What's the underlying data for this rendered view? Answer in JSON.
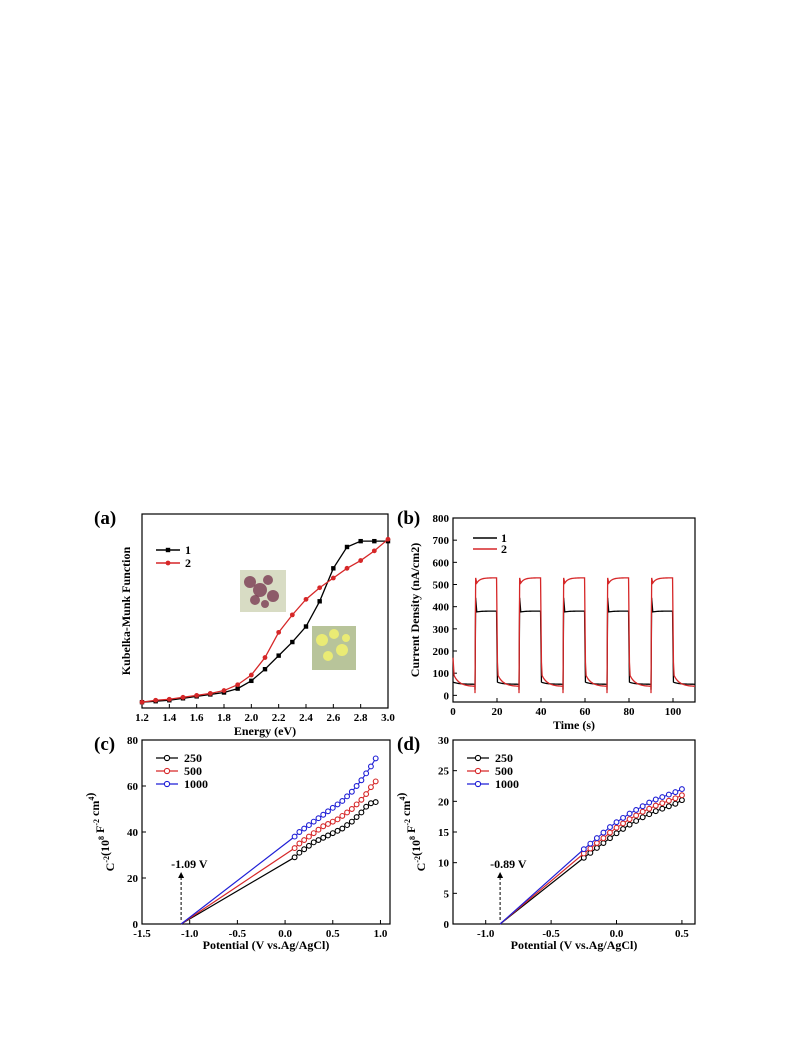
{
  "figure": {
    "panel_labels": [
      "(a)",
      "(b)",
      "(c)",
      "(d)"
    ]
  },
  "chart_data": [
    {
      "type": "line",
      "panel": "(a)",
      "xlabel": "Energy (eV)",
      "ylabel": "Kubelka-Munk Function",
      "xlim": [
        1.2,
        3.0
      ],
      "ylim": [
        0,
        1.0
      ],
      "xticks": [
        "1.2",
        "1.4",
        "1.6",
        "1.8",
        "2.0",
        "2.2",
        "2.4",
        "2.6",
        "2.8",
        "3.0"
      ],
      "yticks_visible": false,
      "legend": {
        "placement": "top-left",
        "entries": [
          "1",
          "2"
        ]
      },
      "colors": {
        "1": "#000000",
        "2": "#d62728"
      },
      "insets": [
        "purple crystal photo",
        "yellow crystal photo"
      ],
      "series": [
        {
          "name": "1",
          "marker": "square",
          "x": [
            1.2,
            1.3,
            1.4,
            1.5,
            1.6,
            1.7,
            1.8,
            1.9,
            2.0,
            2.1,
            2.2,
            2.3,
            2.4,
            2.5,
            2.6,
            2.7,
            2.8,
            2.9,
            3.0
          ],
          "y": [
            0.03,
            0.035,
            0.04,
            0.05,
            0.06,
            0.07,
            0.08,
            0.1,
            0.14,
            0.2,
            0.27,
            0.34,
            0.42,
            0.55,
            0.72,
            0.83,
            0.86,
            0.86,
            0.86
          ]
        },
        {
          "name": "2",
          "marker": "circle",
          "x": [
            1.2,
            1.3,
            1.4,
            1.5,
            1.6,
            1.7,
            1.8,
            1.9,
            2.0,
            2.1,
            2.2,
            2.3,
            2.4,
            2.5,
            2.6,
            2.7,
            2.8,
            2.9,
            3.0
          ],
          "y": [
            0.03,
            0.04,
            0.045,
            0.055,
            0.065,
            0.075,
            0.09,
            0.12,
            0.17,
            0.26,
            0.39,
            0.48,
            0.56,
            0.62,
            0.67,
            0.72,
            0.76,
            0.81,
            0.87
          ]
        }
      ]
    },
    {
      "type": "line",
      "panel": "(b)",
      "xlabel": "Time (s)",
      "ylabel": "Current Density  (nA/cm2)",
      "xlim": [
        0,
        110
      ],
      "ylim": [
        -30,
        800
      ],
      "xticks": [
        "0",
        "20",
        "40",
        "60",
        "80",
        "100"
      ],
      "yticks": [
        "0",
        "100",
        "200",
        "300",
        "400",
        "500",
        "600",
        "700",
        "800"
      ],
      "legend": {
        "placement": "top-left",
        "entries": [
          "1",
          "2"
        ]
      },
      "colors": {
        "1": "#000000",
        "2": "#d62728"
      },
      "cycles_on_off": [
        [
          10,
          20
        ],
        [
          30,
          40
        ],
        [
          50,
          60
        ],
        [
          70,
          80
        ],
        [
          90,
          100
        ]
      ],
      "series": [
        {
          "name": "1",
          "baseline": 50,
          "plateau": 380
        },
        {
          "name": "2",
          "baseline": 40,
          "plateau": 530
        }
      ]
    },
    {
      "type": "scatter",
      "panel": "(c)",
      "xlabel": "Potential (V vs.Ag/AgCl)",
      "ylabel": "C-2(108 F-2 cm4)",
      "xlim": [
        -1.5,
        1.1
      ],
      "ylim": [
        0,
        80
      ],
      "xticks": [
        "-1.5",
        "-1.0",
        "-0.5",
        "0.0",
        "0.5",
        "1.0"
      ],
      "yticks": [
        "0",
        "20",
        "40",
        "60",
        "80"
      ],
      "legend": {
        "placement": "top-left",
        "entries": [
          "250",
          "500",
          "1000"
        ]
      },
      "colors": {
        "250": "#000000",
        "500": "#d62728",
        "1000": "#1f1fd6"
      },
      "intercept_label": "-1.09 V",
      "intercept_x": -1.09,
      "series": [
        {
          "name": "250",
          "x": [
            0.1,
            0.15,
            0.2,
            0.25,
            0.3,
            0.35,
            0.4,
            0.45,
            0.5,
            0.55,
            0.6,
            0.65,
            0.7,
            0.75,
            0.8,
            0.85,
            0.9,
            0.95
          ],
          "y": [
            29,
            31,
            32.5,
            34,
            35.5,
            36.5,
            37.5,
            38.5,
            39.5,
            40.5,
            41.5,
            43,
            44.5,
            46.5,
            48.5,
            51,
            52.5,
            53
          ]
        },
        {
          "name": "500",
          "x": [
            0.1,
            0.15,
            0.2,
            0.25,
            0.3,
            0.35,
            0.4,
            0.45,
            0.5,
            0.55,
            0.6,
            0.65,
            0.7,
            0.75,
            0.8,
            0.85,
            0.9,
            0.95
          ],
          "y": [
            33,
            35,
            36.5,
            38,
            39.5,
            41,
            42.5,
            43.5,
            44.5,
            45.5,
            47,
            48.5,
            50,
            52,
            54,
            56.5,
            59.5,
            62
          ]
        },
        {
          "name": "1000",
          "x": [
            0.1,
            0.15,
            0.2,
            0.25,
            0.3,
            0.35,
            0.4,
            0.45,
            0.5,
            0.55,
            0.6,
            0.65,
            0.7,
            0.75,
            0.8,
            0.85,
            0.9,
            0.95
          ],
          "y": [
            38,
            40,
            41.5,
            43,
            44.5,
            46,
            47.5,
            49,
            50.5,
            52,
            53.5,
            55.5,
            57.5,
            60,
            62.5,
            65.5,
            68.5,
            72
          ]
        }
      ]
    },
    {
      "type": "scatter",
      "panel": "(d)",
      "xlabel": "Potential (V vs.Ag/AgCl)",
      "ylabel": "C-2(108 F-2 cm4)",
      "xlim": [
        -1.25,
        0.6
      ],
      "ylim": [
        0,
        30
      ],
      "xticks": [
        "-1.0",
        "-0.5",
        "0.0",
        "0.5"
      ],
      "yticks": [
        "0",
        "5",
        "10",
        "15",
        "20",
        "25",
        "30"
      ],
      "legend": {
        "placement": "top-left",
        "entries": [
          "250",
          "500",
          "1000"
        ]
      },
      "colors": {
        "250": "#000000",
        "500": "#d62728",
        "1000": "#1f1fd6"
      },
      "intercept_label": "-0.89 V",
      "intercept_x": -0.89,
      "series": [
        {
          "name": "250",
          "x": [
            -0.25,
            -0.2,
            -0.15,
            -0.1,
            -0.05,
            0.0,
            0.05,
            0.1,
            0.15,
            0.2,
            0.25,
            0.3,
            0.35,
            0.4,
            0.45,
            0.5
          ],
          "y": [
            10.8,
            11.6,
            12.4,
            13.2,
            14.0,
            14.8,
            15.5,
            16.2,
            16.8,
            17.4,
            17.9,
            18.4,
            18.8,
            19.2,
            19.6,
            20.2
          ]
        },
        {
          "name": "500",
          "x": [
            -0.25,
            -0.2,
            -0.15,
            -0.1,
            -0.05,
            0.0,
            0.05,
            0.1,
            0.15,
            0.2,
            0.25,
            0.3,
            0.35,
            0.4,
            0.45,
            0.5
          ],
          "y": [
            11.5,
            12.3,
            13.2,
            14.0,
            14.9,
            15.7,
            16.4,
            17.1,
            17.7,
            18.3,
            18.8,
            19.3,
            19.7,
            20.1,
            20.5,
            21.0
          ]
        },
        {
          "name": "1000",
          "x": [
            -0.25,
            -0.2,
            -0.15,
            -0.1,
            -0.05,
            0.0,
            0.05,
            0.1,
            0.15,
            0.2,
            0.25,
            0.3,
            0.35,
            0.4,
            0.45,
            0.5
          ],
          "y": [
            12.2,
            13.1,
            14.0,
            14.9,
            15.8,
            16.6,
            17.3,
            18.0,
            18.6,
            19.2,
            19.8,
            20.3,
            20.7,
            21.1,
            21.5,
            22.0
          ]
        }
      ]
    }
  ]
}
